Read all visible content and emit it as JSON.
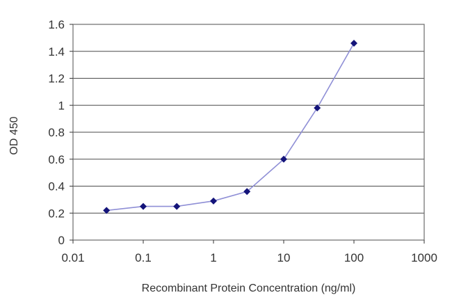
{
  "chart_data": {
    "type": "line",
    "xscale": "log",
    "xlim": [
      0.01,
      1000
    ],
    "ylim": [
      0,
      1.6
    ],
    "grid": "horizontal",
    "xlabel": "Recombinant Protein Concentration (ng/ml)",
    "ylabel": "OD 450",
    "xticks": [
      "0.01",
      "0.1",
      "1",
      "10",
      "100",
      "1000"
    ],
    "yticks": [
      "0",
      "0.2",
      "0.4",
      "0.6",
      "0.8",
      "1",
      "1.2",
      "1.4",
      "1.6"
    ],
    "series": [
      {
        "x": [
          0.03,
          0.1,
          0.3,
          1,
          3,
          10,
          30,
          100
        ],
        "y": [
          0.22,
          0.25,
          0.25,
          0.29,
          0.36,
          0.6,
          0.98,
          1.46
        ]
      }
    ],
    "colors": {
      "line": "#8f8fd6",
      "marker": "#14147a",
      "grid": "#4a4a4a",
      "text": "#333333"
    }
  }
}
